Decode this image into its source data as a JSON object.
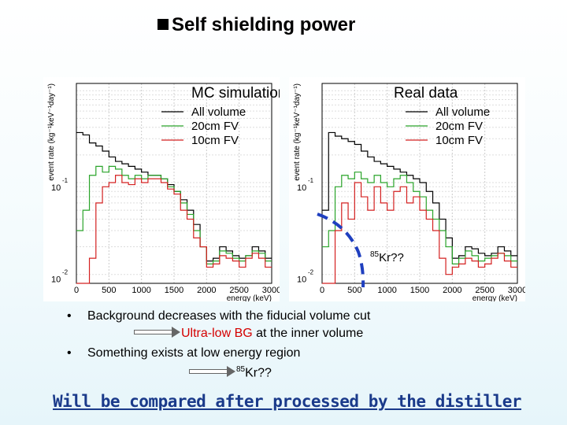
{
  "slide": {
    "title": "Self shielding power",
    "annotation": {
      "sup": "85",
      "text": "Kr??",
      "color": "#1f3fbf"
    },
    "bullets": [
      {
        "text": "Background decreases with the fiducial volume cut"
      },
      {
        "prefix": "",
        "highlight": "Ultra-low BG",
        "suffix": " at the inner volume"
      },
      {
        "text": "Something exists at low energy region"
      },
      {
        "sup": "85",
        "text": "Kr??"
      }
    ],
    "conclusion": "Will be compared after processed by the distiller",
    "colors": {
      "all": "#000000",
      "fv20": "#2aa42a",
      "fv10": "#d42020",
      "highlight": "#d40000",
      "conclusion": "#1a3a8a"
    }
  },
  "chart_data": [
    {
      "type": "line",
      "title": "MC simulation",
      "xlabel": "energy (keV)",
      "ylabel": "event rate (kg⁻¹keV⁻¹day⁻¹)",
      "xlim": [
        0,
        3000
      ],
      "yscale": "log",
      "ylim": [
        0.008,
        1.2
      ],
      "xticks": [
        "0",
        "500",
        "1000",
        "1500",
        "2000",
        "2500",
        "3000"
      ],
      "yticks": [
        {
          "base": "10",
          "exp": "-1",
          "value": 0.1
        },
        {
          "base": "10",
          "exp": "-2",
          "value": 0.01
        }
      ],
      "legend": [
        "All volume",
        "20cm FV",
        "10cm FV"
      ],
      "x": [
        0,
        100,
        200,
        300,
        400,
        500,
        600,
        700,
        800,
        900,
        1000,
        1100,
        1200,
        1300,
        1400,
        1500,
        1600,
        1700,
        1800,
        1900,
        2000,
        2100,
        2200,
        2300,
        2400,
        2500,
        2600,
        2700,
        2800,
        2900,
        3000
      ],
      "series": [
        {
          "name": "All volume",
          "values": [
            0.35,
            0.33,
            0.27,
            0.25,
            0.22,
            0.19,
            0.17,
            0.16,
            0.15,
            0.14,
            0.13,
            0.12,
            0.12,
            0.11,
            0.095,
            0.08,
            0.065,
            0.05,
            0.035,
            0.02,
            0.014,
            0.015,
            0.02,
            0.018,
            0.016,
            0.015,
            0.016,
            0.02,
            0.018,
            0.015,
            0.014
          ]
        },
        {
          "name": "20cm FV",
          "values": [
            0.03,
            0.05,
            0.12,
            0.15,
            0.13,
            0.15,
            0.14,
            0.12,
            0.11,
            0.12,
            0.11,
            0.12,
            0.12,
            0.11,
            0.09,
            0.08,
            0.06,
            0.045,
            0.03,
            0.02,
            0.013,
            0.014,
            0.018,
            0.017,
            0.015,
            0.014,
            0.016,
            0.018,
            0.017,
            0.014,
            0.013
          ]
        },
        {
          "name": "10cm FV",
          "values": [
            0.008,
            0.008,
            0.015,
            0.06,
            0.09,
            0.1,
            0.12,
            0.1,
            0.095,
            0.11,
            0.1,
            0.11,
            0.11,
            0.1,
            0.085,
            0.075,
            0.05,
            0.04,
            0.025,
            0.02,
            0.012,
            0.013,
            0.016,
            0.015,
            0.014,
            0.012,
            0.015,
            0.017,
            0.015,
            0.012,
            0.012
          ]
        }
      ]
    },
    {
      "type": "line",
      "title": "Real data",
      "xlabel": "energy (keV)",
      "ylabel": "event rate (kg⁻¹keV⁻¹day⁻¹)",
      "xlim": [
        0,
        3000
      ],
      "yscale": "log",
      "ylim": [
        0.008,
        1.2
      ],
      "xticks": [
        "0",
        "500",
        "1000",
        "1500",
        "2000",
        "2500",
        "3000"
      ],
      "yticks": [
        {
          "base": "10",
          "exp": "-1",
          "value": 0.1
        },
        {
          "base": "10",
          "exp": "-2",
          "value": 0.01
        }
      ],
      "legend": [
        "All volume",
        "20cm FV",
        "10cm FV"
      ],
      "x": [
        0,
        100,
        200,
        300,
        400,
        500,
        600,
        700,
        800,
        900,
        1000,
        1100,
        1200,
        1300,
        1400,
        1500,
        1600,
        1700,
        1800,
        1900,
        2000,
        2100,
        2200,
        2300,
        2400,
        2500,
        2600,
        2700,
        2800,
        2900,
        3000
      ],
      "series": [
        {
          "name": "All volume",
          "values": [
            0.05,
            0.35,
            0.32,
            0.3,
            0.28,
            0.26,
            0.22,
            0.19,
            0.17,
            0.16,
            0.15,
            0.14,
            0.13,
            0.12,
            0.11,
            0.1,
            0.08,
            0.06,
            0.04,
            0.025,
            0.015,
            0.016,
            0.02,
            0.019,
            0.017,
            0.016,
            0.017,
            0.02,
            0.018,
            0.016,
            0.015
          ]
        },
        {
          "name": "20cm FV",
          "values": [
            0.02,
            0.03,
            0.09,
            0.12,
            0.11,
            0.13,
            0.11,
            0.1,
            0.12,
            0.1,
            0.09,
            0.11,
            0.12,
            0.1,
            0.08,
            0.07,
            0.05,
            0.04,
            0.03,
            0.02,
            0.013,
            0.015,
            0.018,
            0.016,
            0.014,
            0.015,
            0.016,
            0.017,
            0.016,
            0.014,
            0.013
          ]
        },
        {
          "name": "10cm FV",
          "values": [
            0.008,
            0.008,
            0.03,
            0.06,
            0.04,
            0.1,
            0.07,
            0.05,
            0.09,
            0.06,
            0.05,
            0.08,
            0.09,
            0.06,
            0.07,
            0.05,
            0.04,
            0.03,
            0.015,
            0.01,
            0.012,
            0.013,
            0.015,
            0.014,
            0.012,
            0.013,
            0.015,
            0.017,
            0.014,
            0.012,
            0.012
          ]
        }
      ]
    }
  ]
}
